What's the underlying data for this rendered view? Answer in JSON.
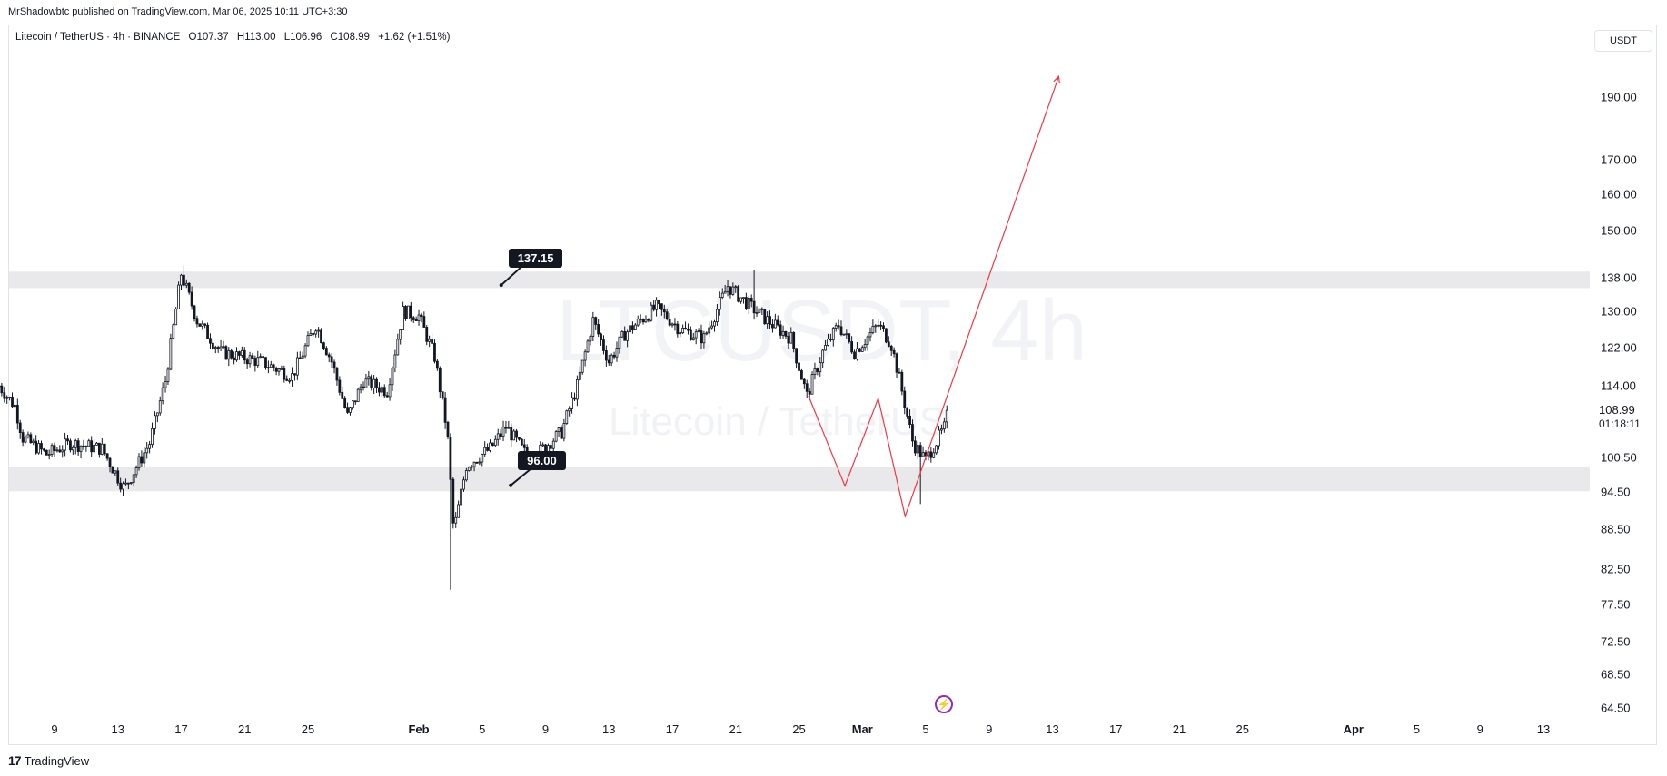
{
  "header": {
    "publish_line": "MrShadowbtc published on TradingView.com, Mar 06, 2025 10:11 UTC+3:30"
  },
  "legend": {
    "symbol": "Litecoin / TetherUS · 4h · BINANCE",
    "open": "O107.37",
    "high": "H113.00",
    "low": "L106.96",
    "close": "C108.99",
    "change": "+1.62 (+1.51%)"
  },
  "currency": "USDT",
  "watermark": {
    "ticker": "LTCUSDT, 4h",
    "name": "Litecoin / TetherUS"
  },
  "last_price": {
    "value": "108.99",
    "countdown": "01:18:11"
  },
  "annotations": {
    "resistance_label": "137.15",
    "support_label": "96.00"
  },
  "footer": {
    "brand": "TradingView"
  },
  "colors": {
    "candle": "#131722",
    "zone": "#e9e9ec",
    "projection": "#f23645",
    "border": "#e0e3eb"
  },
  "chart_data": {
    "type": "candlestick",
    "symbol": "LTCUSDT",
    "timeframe": "4h",
    "y_scale": "log",
    "ylim": [
      63,
      215
    ],
    "price_ticks": [
      190.0,
      170.0,
      160.0,
      150.0,
      138.0,
      130.0,
      122.0,
      114.0,
      100.5,
      94.5,
      88.5,
      82.5,
      77.5,
      72.5,
      68.5,
      64.5
    ],
    "time_ticks": [
      {
        "label": "9",
        "day": 9
      },
      {
        "label": "13",
        "day": 13
      },
      {
        "label": "17",
        "day": 17
      },
      {
        "label": "21",
        "day": 21
      },
      {
        "label": "25",
        "day": 25
      },
      {
        "label": "Feb",
        "day": 32,
        "bold": true
      },
      {
        "label": "5",
        "day": 36
      },
      {
        "label": "9",
        "day": 40
      },
      {
        "label": "13",
        "day": 44
      },
      {
        "label": "17",
        "day": 48
      },
      {
        "label": "21",
        "day": 52
      },
      {
        "label": "25",
        "day": 56
      },
      {
        "label": "Mar",
        "day": 60,
        "bold": true
      },
      {
        "label": "5",
        "day": 64
      },
      {
        "label": "9",
        "day": 68
      },
      {
        "label": "13",
        "day": 72
      },
      {
        "label": "17",
        "day": 76
      },
      {
        "label": "21",
        "day": 80
      },
      {
        "label": "25",
        "day": 84
      },
      {
        "label": "Apr",
        "day": 91,
        "bold": true
      },
      {
        "label": "5",
        "day": 95
      },
      {
        "label": "9",
        "day": 99
      },
      {
        "label": "13",
        "day": 103
      }
    ],
    "zones": [
      {
        "name": "resistance",
        "low": 135.5,
        "high": 139.5
      },
      {
        "name": "support",
        "low": 94.6,
        "high": 98.8
      }
    ],
    "series_waypoints": [
      {
        "day": 5.5,
        "price": 114
      },
      {
        "day": 6.5,
        "price": 110
      },
      {
        "day": 7.0,
        "price": 104
      },
      {
        "day": 8.5,
        "price": 101
      },
      {
        "day": 10,
        "price": 103
      },
      {
        "day": 12,
        "price": 102
      },
      {
        "day": 13.4,
        "price": 95
      },
      {
        "day": 15,
        "price": 103
      },
      {
        "day": 16,
        "price": 115
      },
      {
        "day": 17,
        "price": 139
      },
      {
        "day": 18,
        "price": 128
      },
      {
        "day": 19.5,
        "price": 121
      },
      {
        "day": 22,
        "price": 119
      },
      {
        "day": 24,
        "price": 116
      },
      {
        "day": 25.5,
        "price": 127
      },
      {
        "day": 26.5,
        "price": 119
      },
      {
        "day": 27.5,
        "price": 108
      },
      {
        "day": 28.5,
        "price": 115
      },
      {
        "day": 30,
        "price": 113
      },
      {
        "day": 31,
        "price": 130
      },
      {
        "day": 32,
        "price": 129
      },
      {
        "day": 33,
        "price": 120
      },
      {
        "day": 33.8,
        "price": 105
      },
      {
        "day": 34.2,
        "price": 88
      },
      {
        "day": 35,
        "price": 99
      },
      {
        "day": 36.5,
        "price": 102
      },
      {
        "day": 37.5,
        "price": 106
      },
      {
        "day": 39,
        "price": 100
      },
      {
        "day": 41,
        "price": 105
      },
      {
        "day": 42,
        "price": 114
      },
      {
        "day": 43,
        "price": 128
      },
      {
        "day": 44,
        "price": 119
      },
      {
        "day": 45,
        "price": 125
      },
      {
        "day": 47,
        "price": 131
      },
      {
        "day": 48.5,
        "price": 126
      },
      {
        "day": 50,
        "price": 124
      },
      {
        "day": 51.5,
        "price": 136
      },
      {
        "day": 53,
        "price": 131
      },
      {
        "day": 54,
        "price": 128
      },
      {
        "day": 55.5,
        "price": 124
      },
      {
        "day": 56.5,
        "price": 112
      },
      {
        "day": 57.5,
        "price": 121
      },
      {
        "day": 58.5,
        "price": 127
      },
      {
        "day": 59.5,
        "price": 121
      },
      {
        "day": 61,
        "price": 127
      },
      {
        "day": 61.8,
        "price": 123
      },
      {
        "day": 62.3,
        "price": 116
      },
      {
        "day": 63.2,
        "price": 103
      },
      {
        "day": 64,
        "price": 100
      },
      {
        "day": 65.2,
        "price": 106
      },
      {
        "day": 65.4,
        "price": 108.99
      }
    ],
    "extremes": [
      {
        "day": 34.0,
        "low": 79.5
      },
      {
        "day": 17.1,
        "high": 141
      },
      {
        "day": 53.2,
        "high": 140
      },
      {
        "day": 63.6,
        "low": 92.5
      }
    ],
    "projection_path": [
      {
        "day": 56.6,
        "price": 112
      },
      {
        "day": 58.9,
        "price": 95.5
      },
      {
        "day": 61.0,
        "price": 111.5
      },
      {
        "day": 62.7,
        "price": 90.5
      },
      {
        "day": 72.4,
        "price": 197
      }
    ]
  }
}
